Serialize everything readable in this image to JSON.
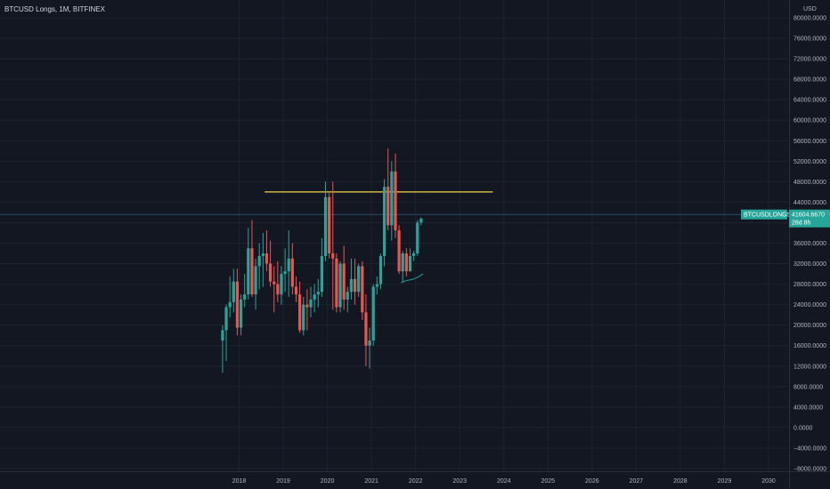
{
  "header": {
    "title": "BTCUSD Longs, 1M, BITFINEX"
  },
  "chart_data": {
    "type": "candlestick",
    "title": "BTCUSD Longs, 1M, BITFINEX",
    "currency": "USD",
    "ylim": [
      -8500,
      81000
    ],
    "y_ticks": [
      80000,
      76000,
      72000,
      68000,
      64000,
      60000,
      56000,
      52000,
      48000,
      44000,
      40000,
      36000,
      32000,
      28000,
      24000,
      20000,
      16000,
      12000,
      8000,
      4000,
      0,
      -4000,
      -8000
    ],
    "y_tick_labels": [
      "80000.0000",
      "76000.0000",
      "72000.0000",
      "68000.0000",
      "64000.0000",
      "60000.0000",
      "56000.0000",
      "52000.0000",
      "48000.0000",
      "44000.0000",
      "40000.0000",
      "36000.0000",
      "32000.0000",
      "28000.0000",
      "24000.0000",
      "20000.0000",
      "16000.0000",
      "12000.0000",
      "8000.0000",
      "4000.0000",
      "0.0000",
      "−4000.0000",
      "−8000.0000"
    ],
    "x_ticks": [
      "2018",
      "2019",
      "2020",
      "2021",
      "2022",
      "2023",
      "2024",
      "2025",
      "2026",
      "2027",
      "2028",
      "2029",
      "2030"
    ],
    "x_range": [
      2015.55,
      2031.0
    ],
    "candles": [
      {
        "t": 2017.625,
        "o": 17000,
        "h": 20000,
        "l": 10700,
        "c": 19000
      },
      {
        "t": 2017.708,
        "o": 19000,
        "h": 24000,
        "l": 13000,
        "c": 23500
      },
      {
        "t": 2017.792,
        "o": 23500,
        "h": 29500,
        "l": 21500,
        "c": 24500
      },
      {
        "t": 2017.875,
        "o": 24500,
        "h": 31000,
        "l": 22500,
        "c": 28500
      },
      {
        "t": 2017.958,
        "o": 28500,
        "h": 31000,
        "l": 18000,
        "c": 19500
      },
      {
        "t": 2018.042,
        "o": 19500,
        "h": 26000,
        "l": 18000,
        "c": 25000
      },
      {
        "t": 2018.125,
        "o": 25000,
        "h": 30000,
        "l": 23500,
        "c": 26000
      },
      {
        "t": 2018.208,
        "o": 26000,
        "h": 39000,
        "l": 25000,
        "c": 35000
      },
      {
        "t": 2018.292,
        "o": 35000,
        "h": 40500,
        "l": 25500,
        "c": 26000
      },
      {
        "t": 2018.375,
        "o": 26000,
        "h": 33000,
        "l": 23000,
        "c": 31500
      },
      {
        "t": 2018.458,
        "o": 31500,
        "h": 36000,
        "l": 27000,
        "c": 33500
      },
      {
        "t": 2018.542,
        "o": 33500,
        "h": 38000,
        "l": 27500,
        "c": 34000
      },
      {
        "t": 2018.625,
        "o": 34000,
        "h": 38500,
        "l": 30500,
        "c": 32000
      },
      {
        "t": 2018.708,
        "o": 32000,
        "h": 36500,
        "l": 27500,
        "c": 28500
      },
      {
        "t": 2018.792,
        "o": 28500,
        "h": 31500,
        "l": 22500,
        "c": 28000
      },
      {
        "t": 2018.875,
        "o": 28000,
        "h": 32500,
        "l": 24500,
        "c": 26000
      },
      {
        "t": 2018.958,
        "o": 26000,
        "h": 31500,
        "l": 24000,
        "c": 30000
      },
      {
        "t": 2019.042,
        "o": 30000,
        "h": 35000,
        "l": 26500,
        "c": 30500
      },
      {
        "t": 2019.125,
        "o": 30500,
        "h": 38500,
        "l": 25500,
        "c": 33000
      },
      {
        "t": 2019.208,
        "o": 33000,
        "h": 36000,
        "l": 26000,
        "c": 27500
      },
      {
        "t": 2019.292,
        "o": 27500,
        "h": 29500,
        "l": 24500,
        "c": 26000
      },
      {
        "t": 2019.375,
        "o": 26000,
        "h": 28500,
        "l": 18500,
        "c": 19000
      },
      {
        "t": 2019.458,
        "o": 19000,
        "h": 25500,
        "l": 18000,
        "c": 24000
      },
      {
        "t": 2019.542,
        "o": 24000,
        "h": 27000,
        "l": 19000,
        "c": 23500
      },
      {
        "t": 2019.625,
        "o": 23500,
        "h": 27500,
        "l": 21500,
        "c": 25000
      },
      {
        "t": 2019.708,
        "o": 25000,
        "h": 28000,
        "l": 22500,
        "c": 26000
      },
      {
        "t": 2019.792,
        "o": 26000,
        "h": 29000,
        "l": 23500,
        "c": 26500
      },
      {
        "t": 2019.875,
        "o": 26500,
        "h": 37000,
        "l": 25500,
        "c": 33500
      },
      {
        "t": 2019.958,
        "o": 33500,
        "h": 48000,
        "l": 32500,
        "c": 45000
      },
      {
        "t": 2020.042,
        "o": 45000,
        "h": 46000,
        "l": 33000,
        "c": 34000
      },
      {
        "t": 2020.125,
        "o": 34000,
        "h": 48000,
        "l": 23000,
        "c": 33000
      },
      {
        "t": 2020.208,
        "o": 33000,
        "h": 34000,
        "l": 22500,
        "c": 23500
      },
      {
        "t": 2020.292,
        "o": 23500,
        "h": 32500,
        "l": 22500,
        "c": 32000
      },
      {
        "t": 2020.375,
        "o": 32000,
        "h": 35500,
        "l": 23000,
        "c": 25000
      },
      {
        "t": 2020.458,
        "o": 25000,
        "h": 27500,
        "l": 22500,
        "c": 26500
      },
      {
        "t": 2020.542,
        "o": 26500,
        "h": 33000,
        "l": 25000,
        "c": 29000
      },
      {
        "t": 2020.625,
        "o": 29000,
        "h": 33000,
        "l": 24000,
        "c": 26500
      },
      {
        "t": 2020.708,
        "o": 26500,
        "h": 32000,
        "l": 25500,
        "c": 31500
      },
      {
        "t": 2020.792,
        "o": 31500,
        "h": 32500,
        "l": 21000,
        "c": 22500
      },
      {
        "t": 2020.875,
        "o": 22500,
        "h": 26000,
        "l": 12000,
        "c": 16000
      },
      {
        "t": 2020.958,
        "o": 16000,
        "h": 19500,
        "l": 11500,
        "c": 17000
      },
      {
        "t": 2021.042,
        "o": 17000,
        "h": 28000,
        "l": 16000,
        "c": 27500
      },
      {
        "t": 2021.125,
        "o": 27500,
        "h": 29500,
        "l": 26000,
        "c": 28000
      },
      {
        "t": 2021.208,
        "o": 28000,
        "h": 34000,
        "l": 27000,
        "c": 33500
      },
      {
        "t": 2021.292,
        "o": 33500,
        "h": 48500,
        "l": 31500,
        "c": 47000
      },
      {
        "t": 2021.375,
        "o": 47000,
        "h": 54500,
        "l": 38500,
        "c": 39500
      },
      {
        "t": 2021.458,
        "o": 39500,
        "h": 52000,
        "l": 36500,
        "c": 50000
      },
      {
        "t": 2021.542,
        "o": 50000,
        "h": 53500,
        "l": 37000,
        "c": 38500
      },
      {
        "t": 2021.625,
        "o": 38500,
        "h": 39500,
        "l": 30000,
        "c": 30500
      },
      {
        "t": 2021.708,
        "o": 30500,
        "h": 34500,
        "l": 28500,
        "c": 34000
      },
      {
        "t": 2021.792,
        "o": 34000,
        "h": 35000,
        "l": 29500,
        "c": 30500
      },
      {
        "t": 2021.875,
        "o": 30500,
        "h": 35000,
        "l": 30500,
        "c": 33500
      },
      {
        "t": 2021.958,
        "o": 33500,
        "h": 34500,
        "l": 32500,
        "c": 34000
      },
      {
        "t": 2022.042,
        "o": 34000,
        "h": 40500,
        "l": 33500,
        "c": 40000
      },
      {
        "t": 2022.125,
        "o": 40000,
        "h": 41000,
        "l": 39500,
        "c": 40800
      }
    ],
    "annotations": {
      "horizontal_line": {
        "value": 46000,
        "from": 2018.58,
        "to": 2023.75,
        "color": "#f0d34a"
      },
      "indicator_line": {
        "color": "#26a69a",
        "points": [
          [
            2021.67,
            28300
          ],
          [
            2021.79,
            28700
          ],
          [
            2021.92,
            28900
          ],
          [
            2022.04,
            29300
          ],
          [
            2022.17,
            30000
          ]
        ]
      },
      "current_price_line": {
        "value": 41604.667,
        "color": "#2a4b6b"
      }
    },
    "price_label": {
      "symbol": "BTCUSDLONGS",
      "value": "41604.6670",
      "countdown": "28d 8h",
      "color": "#26a69a"
    },
    "colors": {
      "up": "#26a69a",
      "down": "#ef5350",
      "background": "#131722",
      "grid": "#1e222d",
      "axis_text": "#b2b5be"
    },
    "grid": true
  }
}
